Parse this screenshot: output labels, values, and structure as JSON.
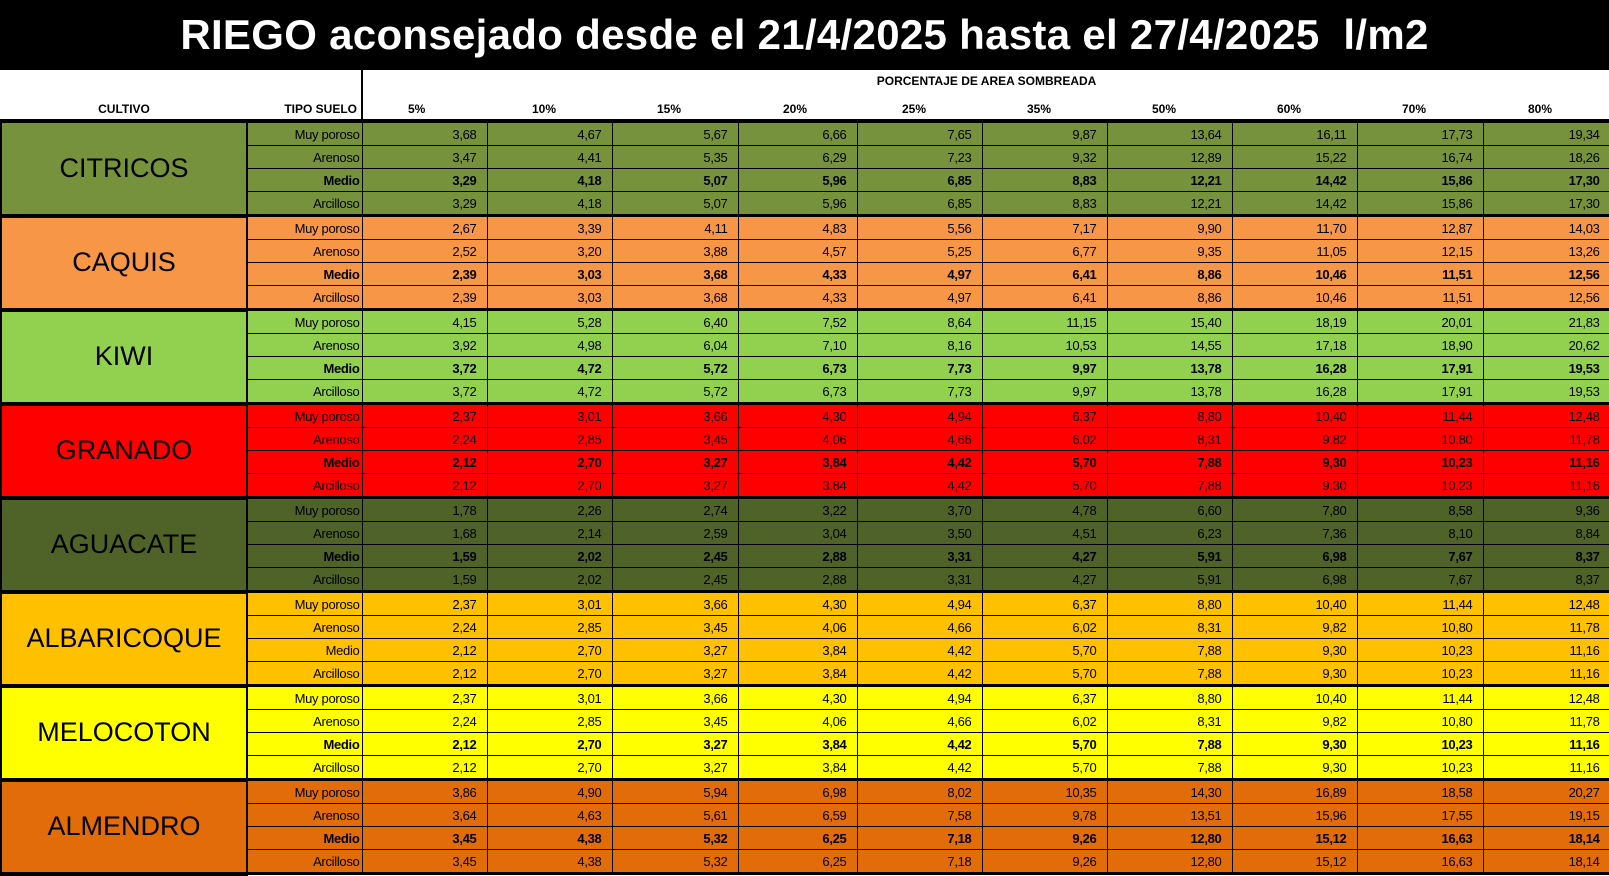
{
  "title": "RIEGO aconsejado desde el 21/4/2025 hasta el 27/4/2025  l/m2",
  "headers": {
    "cultivo": "CULTIVO",
    "tipo_suelo": "TIPO SUELO",
    "group": "PORCENTAJE DE AREA SOMBREADA",
    "percentages": [
      "5%",
      "10%",
      "15%",
      "20%",
      "25%",
      "35%",
      "50%",
      "60%",
      "70%",
      "80%"
    ]
  },
  "crops": [
    {
      "name": "CITRICOS",
      "color": "#76923C",
      "rows": [
        {
          "soil": "Muy poroso",
          "emphasized": false,
          "values": [
            "3,68",
            "4,67",
            "5,67",
            "6,66",
            "7,65",
            "9,87",
            "13,64",
            "16,11",
            "17,73",
            "19,34"
          ]
        },
        {
          "soil": "Arenoso",
          "emphasized": false,
          "values": [
            "3,47",
            "4,41",
            "5,35",
            "6,29",
            "7,23",
            "9,32",
            "12,89",
            "15,22",
            "16,74",
            "18,26"
          ]
        },
        {
          "soil": "Medio",
          "emphasized": true,
          "values": [
            "3,29",
            "4,18",
            "5,07",
            "5,96",
            "6,85",
            "8,83",
            "12,21",
            "14,42",
            "15,86",
            "17,30"
          ]
        },
        {
          "soil": "Arcilloso",
          "emphasized": false,
          "values": [
            "3,29",
            "4,18",
            "5,07",
            "5,96",
            "6,85",
            "8,83",
            "12,21",
            "14,42",
            "15,86",
            "17,30"
          ]
        }
      ]
    },
    {
      "name": "CAQUIS",
      "color": "#F79646",
      "rows": [
        {
          "soil": "Muy poroso",
          "emphasized": false,
          "values": [
            "2,67",
            "3,39",
            "4,11",
            "4,83",
            "5,56",
            "7,17",
            "9,90",
            "11,70",
            "12,87",
            "14,03"
          ]
        },
        {
          "soil": "Arenoso",
          "emphasized": false,
          "values": [
            "2,52",
            "3,20",
            "3,88",
            "4,57",
            "5,25",
            "6,77",
            "9,35",
            "11,05",
            "12,15",
            "13,26"
          ]
        },
        {
          "soil": "Medio",
          "emphasized": true,
          "values": [
            "2,39",
            "3,03",
            "3,68",
            "4,33",
            "4,97",
            "6,41",
            "8,86",
            "10,46",
            "11,51",
            "12,56"
          ]
        },
        {
          "soil": "Arcilloso",
          "emphasized": false,
          "values": [
            "2,39",
            "3,03",
            "3,68",
            "4,33",
            "4,97",
            "6,41",
            "8,86",
            "10,46",
            "11,51",
            "12,56"
          ]
        }
      ]
    },
    {
      "name": "KIWI",
      "color": "#92D050",
      "rows": [
        {
          "soil": "Muy poroso",
          "emphasized": false,
          "values": [
            "4,15",
            "5,28",
            "6,40",
            "7,52",
            "8,64",
            "11,15",
            "15,40",
            "18,19",
            "20,01",
            "21,83"
          ]
        },
        {
          "soil": "Arenoso",
          "emphasized": false,
          "values": [
            "3,92",
            "4,98",
            "6,04",
            "7,10",
            "8,16",
            "10,53",
            "14,55",
            "17,18",
            "18,90",
            "20,62"
          ]
        },
        {
          "soil": "Medio",
          "emphasized": true,
          "values": [
            "3,72",
            "4,72",
            "5,72",
            "6,73",
            "7,73",
            "9,97",
            "13,78",
            "16,28",
            "17,91",
            "19,53"
          ]
        },
        {
          "soil": "Arcilloso",
          "emphasized": false,
          "values": [
            "3,72",
            "4,72",
            "5,72",
            "6,73",
            "7,73",
            "9,97",
            "13,78",
            "16,28",
            "17,91",
            "19,53"
          ]
        }
      ]
    },
    {
      "name": "GRANADO",
      "color": "#FF0000",
      "rows": [
        {
          "soil": "Muy poroso",
          "emphasized": false,
          "values": [
            "2,37",
            "3,01",
            "3,66",
            "4,30",
            "4,94",
            "6,37",
            "8,80",
            "10,40",
            "11,44",
            "12,48"
          ]
        },
        {
          "soil": "Arenoso",
          "emphasized": false,
          "values": [
            "2,24",
            "2,85",
            "3,45",
            "4,06",
            "4,66",
            "6,02",
            "8,31",
            "9,82",
            "10,80",
            "11,78"
          ]
        },
        {
          "soil": "Medio",
          "emphasized": true,
          "values": [
            "2,12",
            "2,70",
            "3,27",
            "3,84",
            "4,42",
            "5,70",
            "7,88",
            "9,30",
            "10,23",
            "11,16"
          ]
        },
        {
          "soil": "Arcilloso",
          "emphasized": false,
          "values": [
            "2,12",
            "2,70",
            "3,27",
            "3,84",
            "4,42",
            "5,70",
            "7,88",
            "9,30",
            "10,23",
            "11,16"
          ]
        }
      ]
    },
    {
      "name": "AGUACATE",
      "color": "#4F6228",
      "rows": [
        {
          "soil": "Muy poroso",
          "emphasized": false,
          "values": [
            "1,78",
            "2,26",
            "2,74",
            "3,22",
            "3,70",
            "4,78",
            "6,60",
            "7,80",
            "8,58",
            "9,36"
          ]
        },
        {
          "soil": "Arenoso",
          "emphasized": false,
          "values": [
            "1,68",
            "2,14",
            "2,59",
            "3,04",
            "3,50",
            "4,51",
            "6,23",
            "7,36",
            "8,10",
            "8,84"
          ]
        },
        {
          "soil": "Medio",
          "emphasized": true,
          "values": [
            "1,59",
            "2,02",
            "2,45",
            "2,88",
            "3,31",
            "4,27",
            "5,91",
            "6,98",
            "7,67",
            "8,37"
          ]
        },
        {
          "soil": "Arcilloso",
          "emphasized": false,
          "values": [
            "1,59",
            "2,02",
            "2,45",
            "2,88",
            "3,31",
            "4,27",
            "5,91",
            "6,98",
            "7,67",
            "8,37"
          ]
        }
      ]
    },
    {
      "name": "ALBARICOQUE",
      "color": "#FFC000",
      "rows": [
        {
          "soil": "Muy poroso",
          "emphasized": false,
          "values": [
            "2,37",
            "3,01",
            "3,66",
            "4,30",
            "4,94",
            "6,37",
            "8,80",
            "10,40",
            "11,44",
            "12,48"
          ]
        },
        {
          "soil": "Arenoso",
          "emphasized": false,
          "values": [
            "2,24",
            "2,85",
            "3,45",
            "4,06",
            "4,66",
            "6,02",
            "8,31",
            "9,82",
            "10,80",
            "11,78"
          ]
        },
        {
          "soil": "Medio",
          "emphasized": false,
          "values": [
            "2,12",
            "2,70",
            "3,27",
            "3,84",
            "4,42",
            "5,70",
            "7,88",
            "9,30",
            "10,23",
            "11,16"
          ]
        },
        {
          "soil": "Arcilloso",
          "emphasized": false,
          "values": [
            "2,12",
            "2,70",
            "3,27",
            "3,84",
            "4,42",
            "5,70",
            "7,88",
            "9,30",
            "10,23",
            "11,16"
          ]
        }
      ]
    },
    {
      "name": "MELOCOTON",
      "color": "#FFFF00",
      "rows": [
        {
          "soil": "Muy poroso",
          "emphasized": false,
          "values": [
            "2,37",
            "3,01",
            "3,66",
            "4,30",
            "4,94",
            "6,37",
            "8,80",
            "10,40",
            "11,44",
            "12,48"
          ]
        },
        {
          "soil": "Arenoso",
          "emphasized": false,
          "values": [
            "2,24",
            "2,85",
            "3,45",
            "4,06",
            "4,66",
            "6,02",
            "8,31",
            "9,82",
            "10,80",
            "11,78"
          ]
        },
        {
          "soil": "Medio",
          "emphasized": true,
          "values": [
            "2,12",
            "2,70",
            "3,27",
            "3,84",
            "4,42",
            "5,70",
            "7,88",
            "9,30",
            "10,23",
            "11,16"
          ]
        },
        {
          "soil": "Arcilloso",
          "emphasized": false,
          "values": [
            "2,12",
            "2,70",
            "3,27",
            "3,84",
            "4,42",
            "5,70",
            "7,88",
            "9,30",
            "10,23",
            "11,16"
          ]
        }
      ]
    },
    {
      "name": "ALMENDRO",
      "color": "#E26B0A",
      "rows": [
        {
          "soil": "Muy poroso",
          "emphasized": false,
          "values": [
            "3,86",
            "4,90",
            "5,94",
            "6,98",
            "8,02",
            "10,35",
            "14,30",
            "16,89",
            "18,58",
            "20,27"
          ]
        },
        {
          "soil": "Arenoso",
          "emphasized": false,
          "values": [
            "3,64",
            "4,63",
            "5,61",
            "6,59",
            "7,58",
            "9,78",
            "13,51",
            "15,96",
            "17,55",
            "19,15"
          ]
        },
        {
          "soil": "Medio",
          "emphasized": true,
          "values": [
            "3,45",
            "4,38",
            "5,32",
            "6,25",
            "7,18",
            "9,26",
            "12,80",
            "15,12",
            "16,63",
            "18,14"
          ]
        },
        {
          "soil": "Arcilloso",
          "emphasized": false,
          "values": [
            "3,45",
            "4,38",
            "5,32",
            "6,25",
            "7,18",
            "9,26",
            "12,80",
            "15,12",
            "16,63",
            "18,14"
          ]
        }
      ]
    }
  ]
}
